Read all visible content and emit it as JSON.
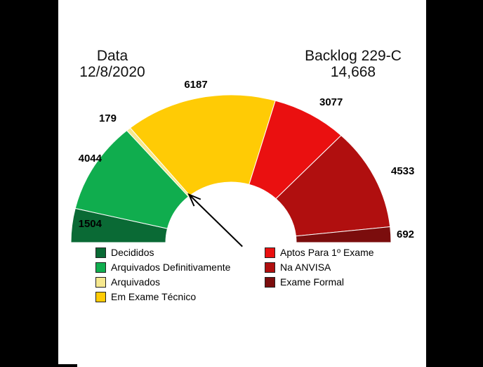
{
  "header": {
    "left_title_line1": "Data",
    "left_title_line2": "12/8/2020",
    "right_title_line1": "Backlog 229-C",
    "right_title_line2": "14,668"
  },
  "frame": {
    "side_bar_color": "#000000",
    "background_color": "#ffffff"
  },
  "chart_data": {
    "type": "pie",
    "variant": "half-doughnut-gauge",
    "start_angle_deg": 180,
    "end_angle_deg": 0,
    "total": 20216,
    "segments": [
      {
        "label": "Decididos",
        "value": 1504,
        "value_label": "1504",
        "color": "#0a6a35"
      },
      {
        "label": "Arquivados Definitivamente",
        "value": 4044,
        "value_label": "4044",
        "color": "#10ad4e"
      },
      {
        "label": "Arquivados",
        "value": 179,
        "value_label": "179",
        "color": "#f6e88f"
      },
      {
        "label": "Em Exame Técnico",
        "value": 6187,
        "value_label": "6187",
        "color": "#ffcb05"
      },
      {
        "label": "Aptos Para 1º Exame",
        "value": 3077,
        "value_label": "3077",
        "color": "#ea1010"
      },
      {
        "label": "Na ANVISA",
        "value": 4533,
        "value_label": "4533",
        "color": "#b00f0f"
      },
      {
        "label": "Exame Formal",
        "value": 692,
        "value_label": "692",
        "color": "#7b0d0d"
      }
    ],
    "legend": {
      "position": "bottom-two-columns",
      "left_column_segment_indices": [
        0,
        1,
        2,
        3
      ],
      "right_column_segment_indices": [
        4,
        5,
        6
      ]
    },
    "annotation": {
      "arrow": "points to inner-edge boundary between Arquivados and Em Exame Técnico",
      "arrow_color": "#000000"
    }
  }
}
